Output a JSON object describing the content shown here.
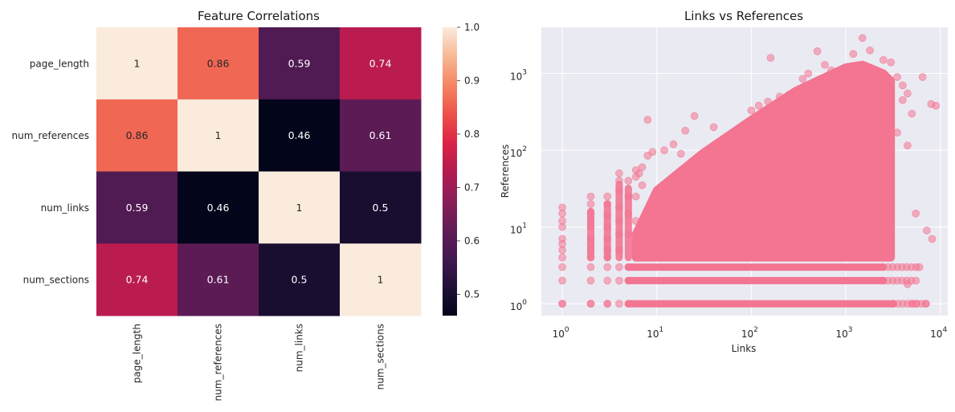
{
  "chart_data": [
    {
      "type": "heatmap",
      "title": "Feature Correlations",
      "rows": [
        "page_length",
        "num_references",
        "num_links",
        "num_sections"
      ],
      "cols": [
        "page_length",
        "num_references",
        "num_links",
        "num_sections"
      ],
      "values": [
        [
          1,
          0.86,
          0.59,
          0.74
        ],
        [
          0.86,
          1,
          0.46,
          0.61
        ],
        [
          0.59,
          0.46,
          1,
          0.5
        ],
        [
          0.74,
          0.61,
          0.5,
          1
        ]
      ],
      "value_labels": [
        [
          "1",
          "0.86",
          "0.59",
          "0.74"
        ],
        [
          "0.86",
          "1",
          "0.46",
          "0.61"
        ],
        [
          "0.59",
          "0.46",
          "1",
          "0.5"
        ],
        [
          "0.74",
          "0.61",
          "0.5",
          "1"
        ]
      ],
      "colormap": "rocket",
      "colorbar": {
        "range": [
          0.46,
          1.0
        ],
        "ticks": [
          0.5,
          0.6,
          0.7,
          0.8,
          0.9,
          1.0
        ],
        "tick_labels": [
          "0.5",
          "0.6",
          "0.7",
          "0.8",
          "0.9",
          "1.0"
        ]
      }
    },
    {
      "type": "scatter",
      "title": "Links vs References",
      "xlabel": "Links",
      "ylabel": "References",
      "xscale": "log",
      "yscale": "log",
      "xlim": [
        0.6,
        12000
      ],
      "ylim": [
        0.7,
        4000
      ],
      "xticks": [
        1,
        10,
        100,
        1000,
        10000
      ],
      "xtick_labels": [
        [
          "10",
          "0"
        ],
        [
          "10",
          "1"
        ],
        [
          "10",
          "2"
        ],
        [
          "10",
          "3"
        ],
        [
          "10",
          "4"
        ]
      ],
      "yticks": [
        1,
        10,
        100,
        1000
      ],
      "ytick_labels": [
        [
          "10",
          "0"
        ],
        [
          "10",
          "1"
        ],
        [
          "10",
          "2"
        ],
        [
          "10",
          "3"
        ]
      ],
      "grid": true,
      "color": "#f37591",
      "alpha": 0.55,
      "dense_region": {
        "x_min": 6,
        "x_max": 3000,
        "y_min": 4,
        "y_max_curve": [
          [
            6,
            8
          ],
          [
            10,
            30
          ],
          [
            30,
            90
          ],
          [
            100,
            250
          ],
          [
            300,
            600
          ],
          [
            1000,
            1200
          ],
          [
            1500,
            1300
          ],
          [
            2500,
            1000
          ],
          [
            3000,
            800
          ]
        ]
      },
      "bands": [
        {
          "y": 1,
          "x_min": 1,
          "x_max": 3200
        },
        {
          "y": 2,
          "x_min": 2,
          "x_max": 2500
        },
        {
          "y": 3,
          "x_min": 2,
          "x_max": 2500
        }
      ],
      "points": [
        [
          1,
          1
        ],
        [
          1,
          2
        ],
        [
          1,
          3
        ],
        [
          1,
          4
        ],
        [
          1,
          5
        ],
        [
          1,
          6
        ],
        [
          1,
          7
        ],
        [
          1,
          10
        ],
        [
          1,
          12
        ],
        [
          1,
          15
        ],
        [
          1,
          18
        ],
        [
          2,
          1
        ],
        [
          2,
          4
        ],
        [
          2,
          5
        ],
        [
          2,
          6
        ],
        [
          2,
          7
        ],
        [
          2,
          10
        ],
        [
          2,
          12
        ],
        [
          2,
          15
        ],
        [
          2,
          20
        ],
        [
          2,
          25
        ],
        [
          3,
          1
        ],
        [
          3,
          4
        ],
        [
          3,
          5
        ],
        [
          3,
          7
        ],
        [
          3,
          10
        ],
        [
          3,
          14
        ],
        [
          3,
          20
        ],
        [
          3,
          25
        ],
        [
          4,
          5
        ],
        [
          4,
          8
        ],
        [
          4,
          12
        ],
        [
          4,
          18
        ],
        [
          4,
          30
        ],
        [
          4,
          40
        ],
        [
          4,
          50
        ],
        [
          5,
          8
        ],
        [
          5,
          15
        ],
        [
          5,
          25
        ],
        [
          5,
          40
        ],
        [
          6,
          12
        ],
        [
          6,
          25
        ],
        [
          6,
          45
        ],
        [
          6,
          55
        ],
        [
          6.5,
          50
        ],
        [
          7,
          35
        ],
        [
          7,
          60
        ],
        [
          8,
          250
        ],
        [
          8,
          85
        ],
        [
          9,
          95
        ],
        [
          12,
          100
        ],
        [
          15,
          120
        ],
        [
          18,
          90
        ],
        [
          20,
          180
        ],
        [
          25,
          280
        ],
        [
          40,
          200
        ],
        [
          50,
          120
        ],
        [
          100,
          330
        ],
        [
          120,
          380
        ],
        [
          150,
          430
        ],
        [
          160,
          1600
        ],
        [
          200,
          500
        ],
        [
          250,
          530
        ],
        [
          350,
          850
        ],
        [
          400,
          1000
        ],
        [
          500,
          1950
        ],
        [
          600,
          1300
        ],
        [
          700,
          1100
        ],
        [
          1000,
          1050
        ],
        [
          1200,
          1800
        ],
        [
          1500,
          2900
        ],
        [
          1800,
          2000
        ],
        [
          2500,
          1500
        ],
        [
          3000,
          1400
        ],
        [
          3500,
          900
        ],
        [
          4000,
          700
        ],
        [
          4500,
          550
        ],
        [
          4000,
          450
        ],
        [
          5000,
          300
        ],
        [
          3500,
          170
        ],
        [
          4500,
          115
        ],
        [
          5500,
          15
        ],
        [
          7200,
          9
        ],
        [
          6000,
          3
        ],
        [
          4500,
          1.8
        ],
        [
          5000,
          1
        ],
        [
          5500,
          1
        ],
        [
          7000,
          1
        ],
        [
          6500,
          900
        ],
        [
          8200,
          7
        ],
        [
          8000,
          400
        ],
        [
          9000,
          380
        ]
      ]
    }
  ]
}
